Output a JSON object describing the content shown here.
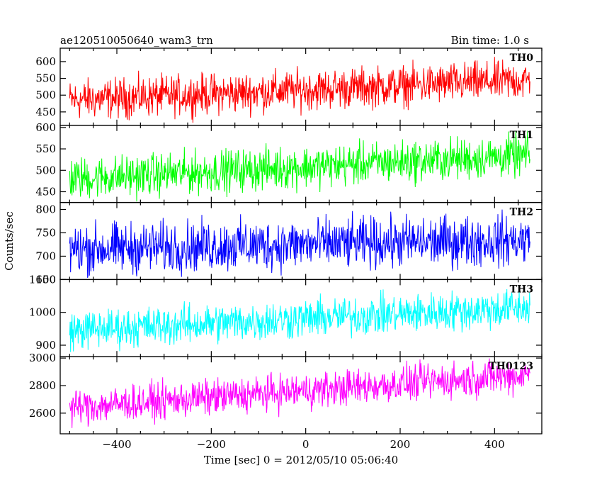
{
  "chart_data": {
    "type": "line",
    "title": "ae120510050640_wam3_trn",
    "subtitle": "Bin time: 1.0 s",
    "xlabel": "Time [sec] 0 = 2012/05/10 05:06:40",
    "ylabel": "Counts/sec",
    "xlim": [
      -520,
      500
    ],
    "x_ticks": [
      -400,
      -200,
      0,
      200,
      400
    ],
    "x_range": [
      -500,
      475
    ],
    "panels": [
      {
        "name": "TH0",
        "color": "#ff0000",
        "ylim": [
          410,
          640
        ],
        "y_ticks": [
          450,
          500,
          550,
          600
        ],
        "trend": [
          485,
          545
        ],
        "scatter": 55
      },
      {
        "name": "TH1",
        "color": "#00ff00",
        "ylim": [
          425,
          605
        ],
        "y_ticks": [
          450,
          500,
          550,
          600
        ],
        "trend": [
          480,
          535
        ],
        "scatter": 45
      },
      {
        "name": "TH2",
        "color": "#0000ff",
        "ylim": [
          650,
          815
        ],
        "y_ticks": [
          650,
          700,
          750,
          800
        ],
        "trend": [
          715,
          735
        ],
        "scatter": 50
      },
      {
        "name": "TH3",
        "color": "#00ffff",
        "ylim": [
          865,
          1100
        ],
        "y_ticks": [
          900,
          1000,
          1100
        ],
        "trend": [
          945,
          1015
        ],
        "scatter": 55
      },
      {
        "name": "TH0123",
        "color": "#ff00ff",
        "ylim": [
          2450,
          3010
        ],
        "y_ticks": [
          2600,
          2800,
          3000
        ],
        "trend": [
          2640,
          2880
        ],
        "scatter": 120
      }
    ]
  }
}
